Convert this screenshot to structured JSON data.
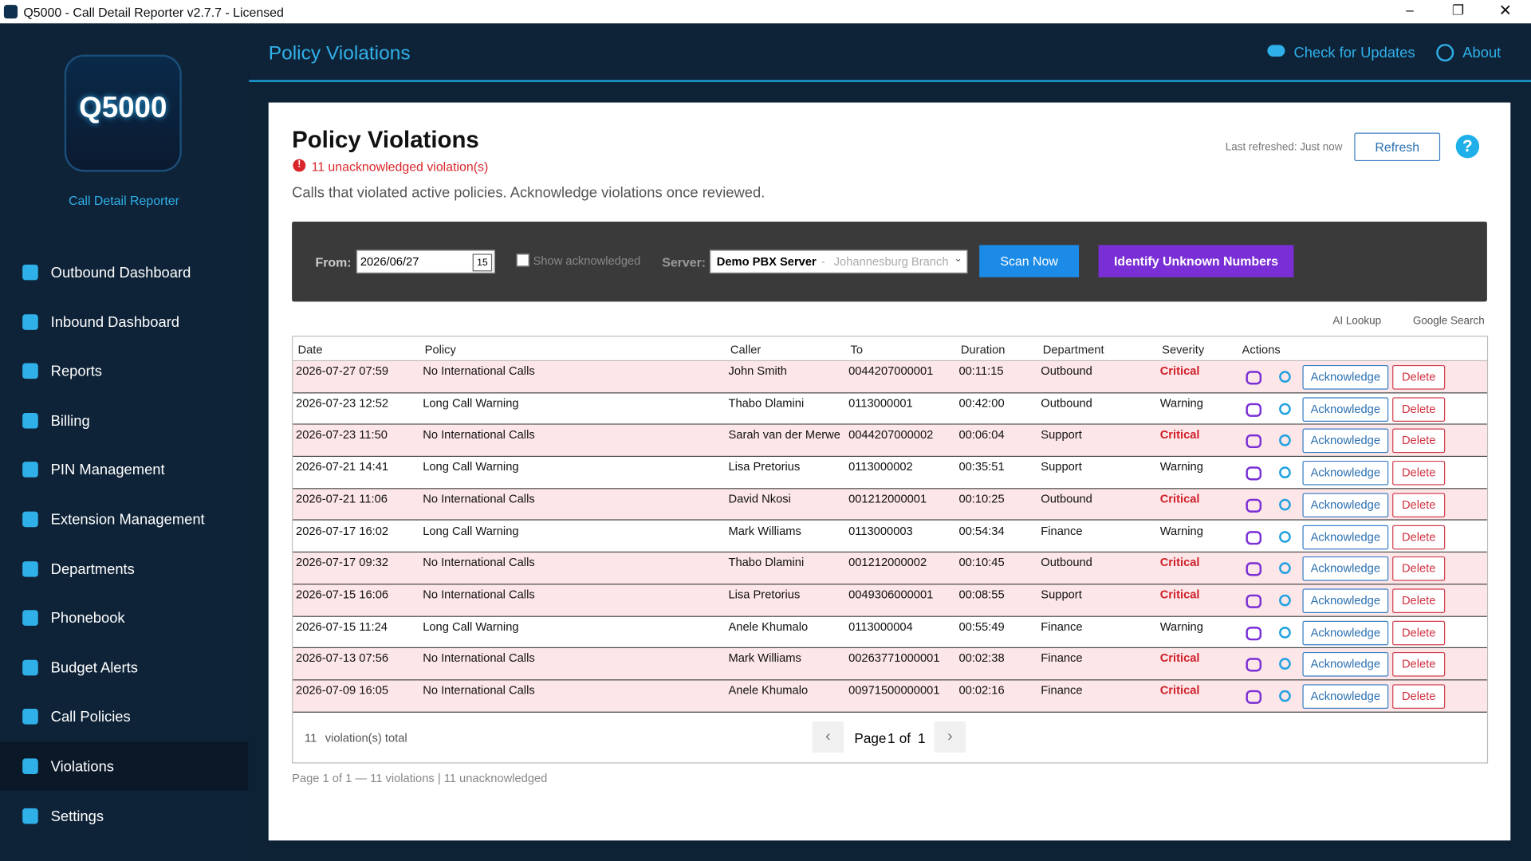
{
  "window": {
    "title": "Q5000 - Call Detail Reporter v2.7.7 - Licensed"
  },
  "sidebar": {
    "logo": "Q5000",
    "subtitle": "Call Detail Reporter",
    "nav": [
      "Outbound Dashboard",
      "Inbound Dashboard",
      "Reports",
      "Billing",
      "PIN Management",
      "Extension Management",
      "Departments",
      "Phonebook",
      "Budget Alerts",
      "Call Policies",
      "Violations",
      "Settings"
    ],
    "active": "Violations"
  },
  "header": {
    "title": "Policy Violations",
    "updates": "Check for Updates",
    "about": "About"
  },
  "page": {
    "title": "Policy Violations",
    "badge_count": "11",
    "badge_text": "unacknowledged violation(s)",
    "description": "Calls that violated active policies. Acknowledge violations once reviewed.",
    "last_refreshed": "Last refreshed: Just now",
    "refresh": "Refresh",
    "help": "?"
  },
  "filters": {
    "from_label": "From:",
    "from_value": "2026/06/27",
    "calendar": "15",
    "show_ack": "Show acknowledged",
    "server_label": "Server:",
    "server_name": "Demo PBX Server",
    "server_sep": "-",
    "server_branch": "Johannesburg Branch",
    "scan": "Scan Now",
    "identify": "Identify Unknown Numbers"
  },
  "legend": {
    "ai": "AI Lookup",
    "google": "Google Search"
  },
  "table": {
    "columns": [
      "Date",
      "Policy",
      "Caller",
      "To",
      "Duration",
      "Department",
      "Severity",
      "Actions"
    ],
    "rows": [
      [
        "2026-07-27 07:59",
        "No International Calls",
        "John Smith",
        "0044207000001",
        "00:11:15",
        "Outbound",
        "Critical"
      ],
      [
        "2026-07-23 12:52",
        "Long Call Warning",
        "Thabo Dlamini",
        "0113000001",
        "00:42:00",
        "Outbound",
        "Warning"
      ],
      [
        "2026-07-23 11:50",
        "No International Calls",
        "Sarah van der Merwe",
        "0044207000002",
        "00:06:04",
        "Support",
        "Critical"
      ],
      [
        "2026-07-21 14:41",
        "Long Call Warning",
        "Lisa Pretorius",
        "0113000002",
        "00:35:51",
        "Support",
        "Warning"
      ],
      [
        "2026-07-21 11:06",
        "No International Calls",
        "David Nkosi",
        "001212000001",
        "00:10:25",
        "Outbound",
        "Critical"
      ],
      [
        "2026-07-17 16:02",
        "Long Call Warning",
        "Mark Williams",
        "0113000003",
        "00:54:34",
        "Finance",
        "Warning"
      ],
      [
        "2026-07-17 09:32",
        "No International Calls",
        "Thabo Dlamini",
        "001212000002",
        "00:10:45",
        "Outbound",
        "Critical"
      ],
      [
        "2026-07-15 16:06",
        "No International Calls",
        "Lisa Pretorius",
        "0049306000001",
        "00:08:55",
        "Support",
        "Critical"
      ],
      [
        "2026-07-15 11:24",
        "Long Call Warning",
        "Anele Khumalo",
        "0113000004",
        "00:55:49",
        "Finance",
        "Warning"
      ],
      [
        "2026-07-13 07:56",
        "No International Calls",
        "Mark Williams",
        "00263771000001",
        "00:02:38",
        "Finance",
        "Critical"
      ],
      [
        "2026-07-09 16:05",
        "No International Calls",
        "Anele Khumalo",
        "00971500000001",
        "00:02:16",
        "Finance",
        "Critical"
      ]
    ],
    "acknowledge": "Acknowledge",
    "delete": "Delete"
  },
  "footer": {
    "total_count": "11",
    "total_text": "violation(s) total",
    "page_label": "Page",
    "page": "1",
    "of": "of",
    "pages": "1",
    "summary": "Page 1 of 1 — 11 violations | 11 unacknowledged"
  }
}
